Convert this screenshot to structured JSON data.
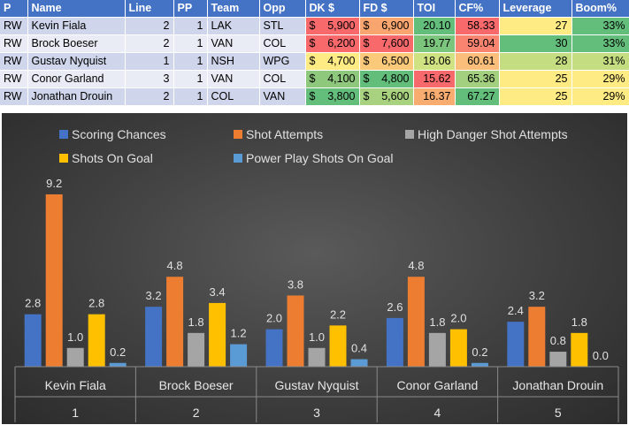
{
  "table": {
    "headers": [
      "P",
      "Name",
      "Line",
      "PP",
      "Team",
      "Opp",
      "DK $",
      "FD $",
      "TOI",
      "CF%",
      "Leverage",
      "Boom%"
    ],
    "rows": [
      {
        "p": "RW",
        "name": "Kevin Fiala",
        "line": "2",
        "pp": "1",
        "team": "LAK",
        "opp": "STL",
        "dk": "5,900",
        "fd": "6,900",
        "toi": "20.10",
        "cf": "58.33",
        "leverage": "27",
        "boom": "33%"
      },
      {
        "p": "RW",
        "name": "Brock Boeser",
        "line": "2",
        "pp": "1",
        "team": "VAN",
        "opp": "COL",
        "dk": "6,200",
        "fd": "7,600",
        "toi": "19.77",
        "cf": "59.04",
        "leverage": "30",
        "boom": "33%"
      },
      {
        "p": "RW",
        "name": "Gustav Nyquist",
        "line": "1",
        "pp": "1",
        "team": "NSH",
        "opp": "WPG",
        "dk": "4,700",
        "fd": "6,500",
        "toi": "18.06",
        "cf": "60.61",
        "leverage": "28",
        "boom": "31%"
      },
      {
        "p": "RW",
        "name": "Conor Garland",
        "line": "3",
        "pp": "1",
        "team": "VAN",
        "opp": "COL",
        "dk": "4,100",
        "fd": "4,800",
        "toi": "15.62",
        "cf": "65.36",
        "leverage": "25",
        "boom": "29%"
      },
      {
        "p": "RW",
        "name": "Jonathan Drouin",
        "line": "2",
        "pp": "1",
        "team": "COL",
        "opp": "VAN",
        "dk": "3,800",
        "fd": "5,600",
        "toi": "16.37",
        "cf": "67.27",
        "leverage": "25",
        "boom": "29%"
      }
    ],
    "currency_symbol": "$",
    "cell_colors": {
      "dk": [
        "#f8696b",
        "#f8696b",
        "#ffeb84",
        "#8ec87c",
        "#63be7b"
      ],
      "fd": [
        "#f8a56f",
        "#f8696b",
        "#fbc97a",
        "#63be7b",
        "#a8d27f"
      ],
      "toi": [
        "#63be7b",
        "#7bc57d",
        "#d0e383",
        "#f8696b",
        "#f9ac70"
      ],
      "cf": [
        "#f8696b",
        "#f98570",
        "#fcbf7b",
        "#a2d07f",
        "#63be7b"
      ],
      "leverage": [
        "#ffeb84",
        "#63be7b",
        "#c4dd81",
        "#ffeb84",
        "#ffeb84"
      ],
      "boom": [
        "#63be7b",
        "#63be7b",
        "#c4dd81",
        "#ffeb84",
        "#ffeb84"
      ]
    }
  },
  "chart_data": {
    "type": "bar",
    "categories": [
      "Kevin Fiala",
      "Brock Boeser",
      "Gustav Nyquist",
      "Conor Garland",
      "Jonathan Drouin"
    ],
    "category_numbers": [
      "1",
      "2",
      "3",
      "4",
      "5"
    ],
    "series": [
      {
        "name": "Scoring Chances",
        "color": "#4472c4",
        "values": [
          2.8,
          3.2,
          2.0,
          2.6,
          2.4
        ]
      },
      {
        "name": "Shot Attempts",
        "color": "#ed7d31",
        "values": [
          9.2,
          4.8,
          3.8,
          4.8,
          3.2
        ]
      },
      {
        "name": "High Danger Shot Attempts",
        "color": "#a5a5a5",
        "values": [
          1.0,
          1.8,
          1.0,
          1.8,
          0.8
        ]
      },
      {
        "name": "Shots On Goal",
        "color": "#ffc000",
        "values": [
          2.8,
          3.4,
          2.2,
          2.0,
          1.8
        ]
      },
      {
        "name": "Power Play Shots On Goal",
        "color": "#5b9bd5",
        "values": [
          0.2,
          1.2,
          0.4,
          0.2,
          0.0
        ]
      }
    ],
    "ylim": [
      0,
      10
    ],
    "grid": false,
    "legend": "top"
  }
}
